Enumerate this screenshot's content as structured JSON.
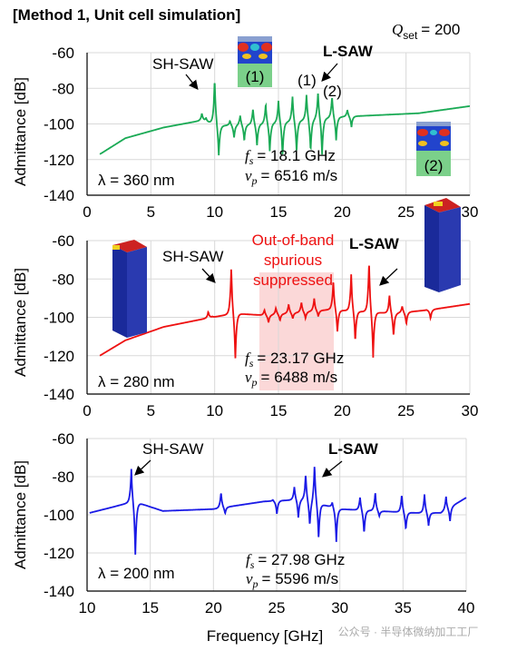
{
  "header": {
    "method": "[Method 1, Unit cell simulation]",
    "q_label": "Q",
    "q_sub": "set",
    "q_value": "= 200"
  },
  "xlabel": "Frequency [GHz]",
  "ylabel": "Admittance [dB]",
  "watermark": "公众号 · 半导体微纳加工工厂",
  "panels": [
    {
      "sh_label": "SH-SAW",
      "ls_label": "L-SAW",
      "mark1": "(1)",
      "mark2": "(2)",
      "lambda": "λ = 360 nm",
      "fs_text": "= 18.1 GHz",
      "vp_text": "= 6516 m/s",
      "mode1_label": "(1)",
      "mode2_label": "(2)"
    },
    {
      "sh_label": "SH-SAW",
      "ls_label": "L-SAW",
      "suppressed": [
        "Out-of-band",
        "spurious",
        "suppressed"
      ],
      "lambda": "λ = 280 nm",
      "fs_text": "= 23.17 GHz",
      "vp_text": "= 6488 m/s"
    },
    {
      "sh_label": "SH-SAW",
      "ls_label": "L-SAW",
      "lambda": "λ = 200 nm",
      "fs_text": "= 27.98 GHz",
      "vp_text": "= 5596 m/s"
    }
  ],
  "chart_data": [
    {
      "type": "line",
      "color": "#1aaa55",
      "xlim": [
        0,
        30
      ],
      "ylim": [
        -140,
        -60
      ],
      "xticks": [
        "0",
        "5",
        "10",
        "15",
        "20",
        "25",
        "30"
      ],
      "yticks": [
        "-60",
        "-80",
        "-100",
        "-120",
        "-140"
      ],
      "xlabel": "",
      "ylabel": "Admittance [dB]",
      "base": [
        [
          1,
          -117
        ],
        [
          3,
          -108
        ],
        [
          6,
          -102
        ],
        [
          9,
          -98
        ],
        [
          10.5,
          -101
        ],
        [
          14,
          -100
        ],
        [
          20,
          -96
        ],
        [
          26,
          -94
        ],
        [
          30,
          -90
        ]
      ],
      "resonances": [
        [
          9.0,
          -94,
          -96
        ],
        [
          10.0,
          -74,
          -118
        ],
        [
          11.2,
          -98,
          -108
        ],
        [
          12.0,
          -95,
          -110
        ],
        [
          13.0,
          -91,
          -113
        ],
        [
          14.0,
          -88,
          -116
        ],
        [
          15.0,
          -86,
          -119
        ],
        [
          16.1,
          -84,
          -117
        ],
        [
          17.2,
          -83,
          -116
        ],
        [
          18.1,
          -81,
          -118
        ],
        [
          19.2,
          -84,
          -110
        ],
        [
          20.4,
          -92,
          -102
        ]
      ],
      "grid": true
    },
    {
      "type": "line",
      "color": "#ee1111",
      "xlim": [
        0,
        30
      ],
      "ylim": [
        -140,
        -60
      ],
      "xticks": [
        "0",
        "5",
        "10",
        "15",
        "20",
        "25",
        "30"
      ],
      "yticks": [
        "-60",
        "-80",
        "-100",
        "-120",
        "-140"
      ],
      "xlabel": "",
      "ylabel": "Admittance [dB]",
      "base": [
        [
          1,
          -120
        ],
        [
          3,
          -112
        ],
        [
          6,
          -105
        ],
        [
          9,
          -101
        ],
        [
          11.5,
          -98
        ],
        [
          14,
          -99
        ],
        [
          19,
          -96
        ],
        [
          24,
          -98
        ],
        [
          27,
          -96
        ],
        [
          30,
          -93
        ]
      ],
      "resonances": [
        [
          9.5,
          -97,
          -100
        ],
        [
          11.3,
          -73,
          -124
        ],
        [
          13.9,
          -96,
          -103
        ],
        [
          14.8,
          -95,
          -102
        ],
        [
          15.8,
          -93,
          -101
        ],
        [
          16.8,
          -92,
          -101
        ],
        [
          17.8,
          -90,
          -100
        ],
        [
          19.3,
          -80,
          -108
        ],
        [
          20.7,
          -77,
          -113
        ],
        [
          22.1,
          -70,
          -122
        ],
        [
          23.7,
          -88,
          -110
        ],
        [
          24.7,
          -94,
          -104
        ],
        [
          26.6,
          -96,
          -101
        ]
      ],
      "grid": true
    },
    {
      "type": "line",
      "color": "#1a1ae6",
      "xlim": [
        10,
        40
      ],
      "ylim": [
        -140,
        -60
      ],
      "xticks": [
        "10",
        "15",
        "20",
        "25",
        "30",
        "35",
        "40"
      ],
      "yticks": [
        "-60",
        "-80",
        "-100",
        "-120",
        "-140"
      ],
      "xlabel": "Frequency [GHz]",
      "ylabel": "Admittance [dB]",
      "base": [
        [
          10.2,
          -99
        ],
        [
          12,
          -96
        ],
        [
          13.7,
          -93
        ],
        [
          16,
          -98
        ],
        [
          20,
          -97
        ],
        [
          24,
          -93
        ],
        [
          27,
          -92
        ],
        [
          30,
          -97
        ],
        [
          33,
          -98
        ],
        [
          36,
          -99
        ],
        [
          38,
          -99
        ],
        [
          40,
          -91
        ]
      ],
      "resonances": [
        [
          13.5,
          -75,
          -122
        ],
        [
          20.6,
          -88,
          -100
        ],
        [
          24.7,
          -92,
          -100
        ],
        [
          26.4,
          -85,
          -102
        ],
        [
          27.3,
          -78,
          -106
        ],
        [
          28.0,
          -73,
          -113
        ],
        [
          29.4,
          -93,
          -114
        ],
        [
          31.6,
          -90,
          -110
        ],
        [
          32.8,
          -88,
          -101
        ],
        [
          34.9,
          -89,
          -108
        ],
        [
          36.7,
          -89,
          -106
        ],
        [
          38.4,
          -90,
          -105
        ]
      ],
      "grid": true
    }
  ]
}
